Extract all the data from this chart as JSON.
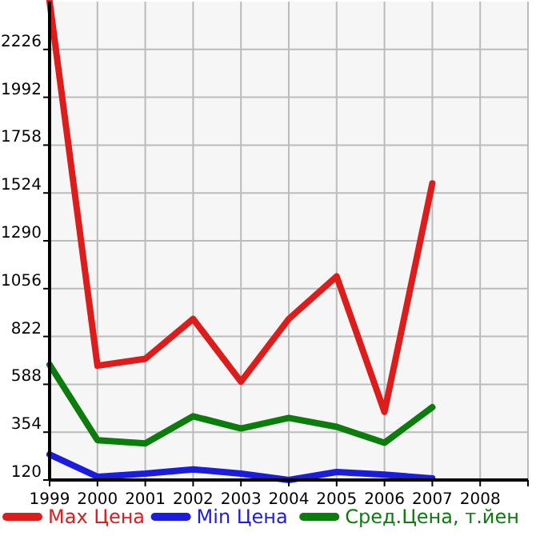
{
  "chart_data": {
    "type": "line",
    "x": [
      1999,
      2000,
      2001,
      2002,
      2003,
      2004,
      2005,
      2006,
      2007
    ],
    "series": [
      {
        "name": "Max Цена",
        "color": "#dd1c1c",
        "values": [
          2460,
          679,
          713,
          908,
          601,
          908,
          1116,
          453,
          1571
        ]
      },
      {
        "name": "Min Цена",
        "color": "#1c1cdd",
        "values": [
          245,
          136,
          151,
          172,
          151,
          120,
          159,
          146,
          128
        ]
      },
      {
        "name": "Сред.Цена, т.йен",
        "color": "#0c7c0c",
        "values": [
          684,
          315,
          299,
          432,
          372,
          424,
          380,
          302,
          476
        ]
      }
    ],
    "xlim": [
      1999,
      2009
    ],
    "xticks": [
      1999,
      2000,
      2001,
      2002,
      2003,
      2004,
      2005,
      2006,
      2007,
      2008,
      {
        "value": 2009,
        "label": null
      }
    ],
    "ylim": [
      120,
      2460
    ],
    "yticks": [
      120,
      354,
      588,
      822,
      1056,
      1290,
      1524,
      1758,
      1992,
      2226
    ],
    "grid": true,
    "legend": "bottom",
    "marker": "none",
    "line_style": "solid"
  }
}
